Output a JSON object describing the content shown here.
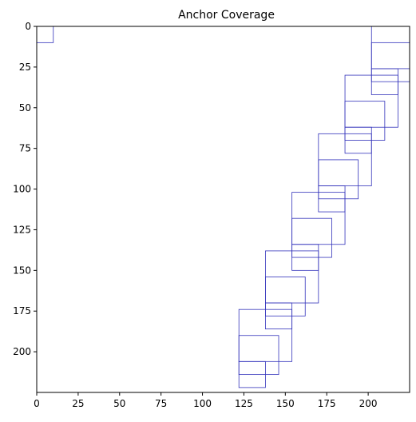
{
  "chart_data": {
    "type": "rectangles",
    "title": "Anchor Coverage",
    "xlabel": "",
    "ylabel": "",
    "xlim": [
      0,
      225
    ],
    "ylim": [
      225,
      0
    ],
    "y_inverted": true,
    "grid": false,
    "x_ticks": [
      0,
      25,
      50,
      75,
      100,
      125,
      150,
      175,
      200
    ],
    "y_ticks": [
      0,
      25,
      50,
      75,
      100,
      125,
      150,
      175,
      200
    ],
    "edge_color": "#3333bb",
    "boxes": [
      {
        "x0": 0,
        "y0": 0,
        "x1": 10,
        "y1": 10
      },
      {
        "x0": 202,
        "y0": 0,
        "x1": 225,
        "y1": 26
      },
      {
        "x0": 202,
        "y0": 10,
        "x1": 225,
        "y1": 34
      },
      {
        "x0": 202,
        "y0": 26,
        "x1": 218,
        "y1": 42
      },
      {
        "x0": 186,
        "y0": 30,
        "x1": 218,
        "y1": 62
      },
      {
        "x0": 186,
        "y0": 46,
        "x1": 210,
        "y1": 70
      },
      {
        "x0": 186,
        "y0": 62,
        "x1": 202,
        "y1": 78
      },
      {
        "x0": 170,
        "y0": 66,
        "x1": 202,
        "y1": 98
      },
      {
        "x0": 170,
        "y0": 82,
        "x1": 194,
        "y1": 106
      },
      {
        "x0": 170,
        "y0": 98,
        "x1": 186,
        "y1": 114
      },
      {
        "x0": 154,
        "y0": 102,
        "x1": 186,
        "y1": 134
      },
      {
        "x0": 154,
        "y0": 118,
        "x1": 178,
        "y1": 142
      },
      {
        "x0": 154,
        "y0": 134,
        "x1": 170,
        "y1": 150
      },
      {
        "x0": 138,
        "y0": 138,
        "x1": 170,
        "y1": 170
      },
      {
        "x0": 138,
        "y0": 154,
        "x1": 162,
        "y1": 178
      },
      {
        "x0": 138,
        "y0": 170,
        "x1": 154,
        "y1": 186
      },
      {
        "x0": 122,
        "y0": 174,
        "x1": 154,
        "y1": 206
      },
      {
        "x0": 122,
        "y0": 190,
        "x1": 146,
        "y1": 214
      },
      {
        "x0": 122,
        "y0": 206,
        "x1": 138,
        "y1": 222
      }
    ]
  }
}
